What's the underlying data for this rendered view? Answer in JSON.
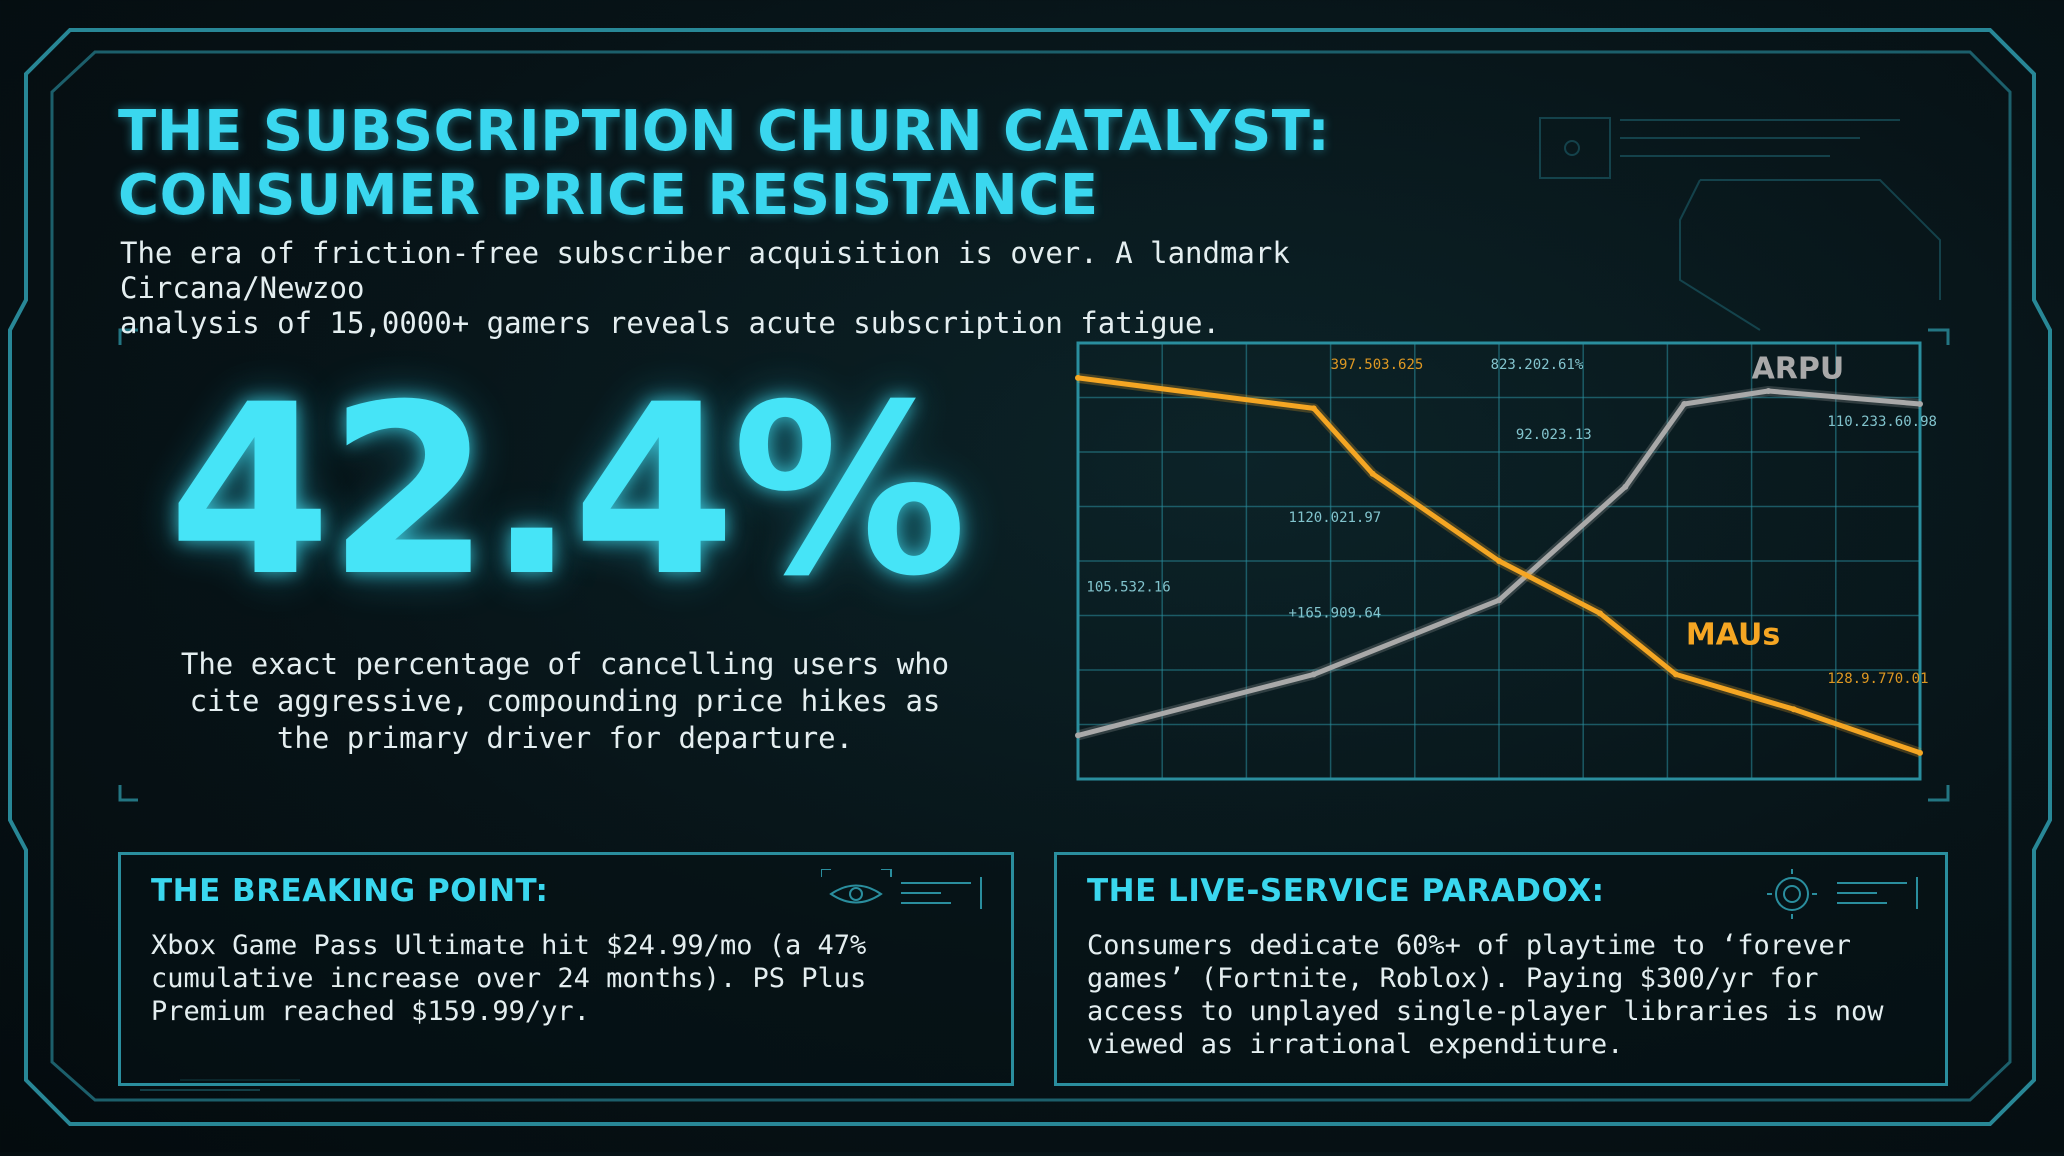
{
  "header": {
    "title_lines": [
      "THE SUBSCRIPTION CHURN CATALYST:",
      "CONSUMER PRICE RESISTANCE"
    ],
    "subtitle_lines": [
      "The era of friction-free subscriber acquisition is over. A landmark Circana/Newzoo",
      "analysis of 15,0000+ gamers reveals acute subscription fatigue."
    ]
  },
  "stat": {
    "value": "42.4%",
    "description_lines": [
      "The exact percentage of cancelling users who",
      "cite aggressive, compounding price hikes as",
      "the primary driver for departure."
    ]
  },
  "chart_data": {
    "type": "line",
    "title": "",
    "xlabel": "",
    "ylabel": "",
    "grid": true,
    "ylim": [
      0,
      100
    ],
    "series": [
      {
        "name": "ARPU",
        "color": "#a9a9a9",
        "x": [
          0,
          28,
          50,
          65,
          72,
          82,
          100
        ],
        "y": [
          10,
          24,
          41,
          67,
          86,
          89,
          86
        ]
      },
      {
        "name": "MAUs",
        "color": "#f5a623",
        "x": [
          0,
          28,
          35,
          50,
          62,
          71,
          85,
          100
        ],
        "y": [
          92,
          85,
          70,
          50,
          38,
          24,
          16,
          6
        ]
      }
    ],
    "annotations": [
      {
        "text": "397.503.625",
        "x": 30,
        "y": 94,
        "color": "#f5a623"
      },
      {
        "text": "823.202.61%",
        "x": 49,
        "y": 94,
        "color": "#8fd6e0"
      },
      {
        "text": "92.023.13",
        "x": 52,
        "y": 78,
        "color": "#8fd6e0"
      },
      {
        "text": "110.233.60.98",
        "x": 89,
        "y": 81,
        "color": "#8fd6e0"
      },
      {
        "text": "1120.021.97",
        "x": 25,
        "y": 59,
        "color": "#8fd6e0"
      },
      {
        "text": "105.532.16",
        "x": 1,
        "y": 43,
        "color": "#8fd6e0"
      },
      {
        "text": "+165.909.64",
        "x": 25,
        "y": 37,
        "color": "#8fd6e0"
      },
      {
        "text": "128.9.770.01",
        "x": 89,
        "y": 22,
        "color": "#f5a623"
      }
    ]
  },
  "cards": [
    {
      "heading": "THE BREAKING POINT:",
      "body_lines": [
        "Xbox Game Pass Ultimate hit $24.99/mo (a 47%",
        "cumulative increase over 24 months). PS Plus",
        "Premium reached $159.99/yr."
      ]
    },
    {
      "heading": "THE LIVE-SERVICE PARADOX:",
      "body_lines": [
        "Consumers dedicate 60%+ of playtime to ‘forever",
        "games’ (Fortnite, Roblox). Paying $300/yr for",
        "access to unplayed single-player libraries is now",
        "viewed as irrational expenditure."
      ]
    }
  ],
  "colors": {
    "accent": "#3ad7ef",
    "arpu": "#a9a9a9",
    "maus": "#f5a623",
    "grid": "#2a8e9e"
  }
}
